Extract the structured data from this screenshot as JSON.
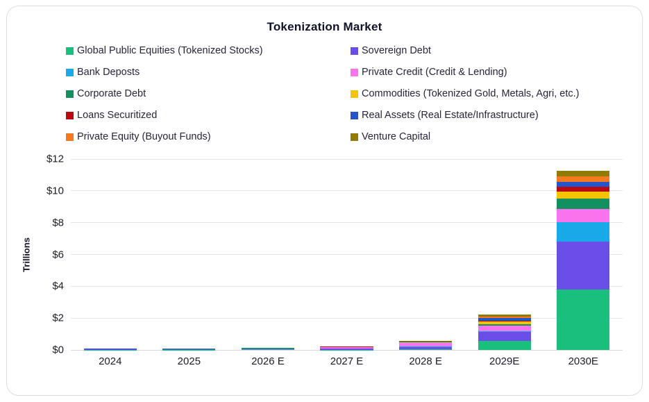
{
  "chart_data": {
    "type": "bar",
    "stacked": true,
    "title": "Tokenization Market",
    "ylabel": "Trillions",
    "categories": [
      "2024",
      "2025",
      "2026 E",
      "2027 E",
      "2028 E",
      "2029E",
      "2030E"
    ],
    "y_ticks": [
      "$0",
      "$2",
      "$4",
      "$6",
      "$8",
      "$10",
      "$12"
    ],
    "y_tick_values": [
      0,
      2,
      4,
      6,
      8,
      10,
      12
    ],
    "ylim": [
      0,
      12
    ],
    "grid": true,
    "legend_position": "top, two columns",
    "series": [
      {
        "name": "Global Public Equities (Tokenized Stocks)",
        "color": "#1abf7d",
        "values": [
          0.02,
          0.02,
          0.03,
          0.02,
          0.03,
          0.55,
          3.8
        ]
      },
      {
        "name": "Sovereign Debt",
        "color": "#6b4de8",
        "values": [
          0.02,
          0.03,
          0.05,
          0.05,
          0.15,
          0.6,
          3.0
        ]
      },
      {
        "name": "Bank Deposts",
        "color": "#18aae8",
        "values": [
          0.005,
          0.005,
          0.01,
          0.01,
          0.05,
          0.05,
          1.25
        ]
      },
      {
        "name": "Private Credit (Credit & Lending)",
        "color": "#f873ec",
        "values": [
          0.01,
          0.01,
          0.02,
          0.08,
          0.2,
          0.35,
          0.8
        ]
      },
      {
        "name": "Corporate Debt",
        "color": "#12905f",
        "values": [
          0.005,
          0.005,
          0.01,
          0.01,
          0.02,
          0.08,
          0.65
        ]
      },
      {
        "name": "Commodities (Tokenized Gold, Metals, Agri, etc.)",
        "color": "#f5c400",
        "values": [
          0.005,
          0.005,
          0.01,
          0.02,
          0.03,
          0.15,
          0.45
        ]
      },
      {
        "name": "Loans Securitized",
        "color": "#b80a10",
        "values": [
          0.002,
          0.003,
          0.005,
          0.01,
          0.02,
          0.05,
          0.3
        ]
      },
      {
        "name": "Real Assets (Real Estate/Infrastructure)",
        "color": "#2355cb",
        "values": [
          0.002,
          0.003,
          0.005,
          0.01,
          0.02,
          0.18,
          0.3
        ]
      },
      {
        "name": "Private Equity (Buyout Funds)",
        "color": "#f37a1f",
        "values": [
          0.002,
          0.003,
          0.005,
          0.01,
          0.02,
          0.08,
          0.35
        ]
      },
      {
        "name": "Venture Capital",
        "color": "#8f7b06",
        "values": [
          0.002,
          0.002,
          0.005,
          0.01,
          0.02,
          0.12,
          0.35
        ]
      }
    ]
  }
}
